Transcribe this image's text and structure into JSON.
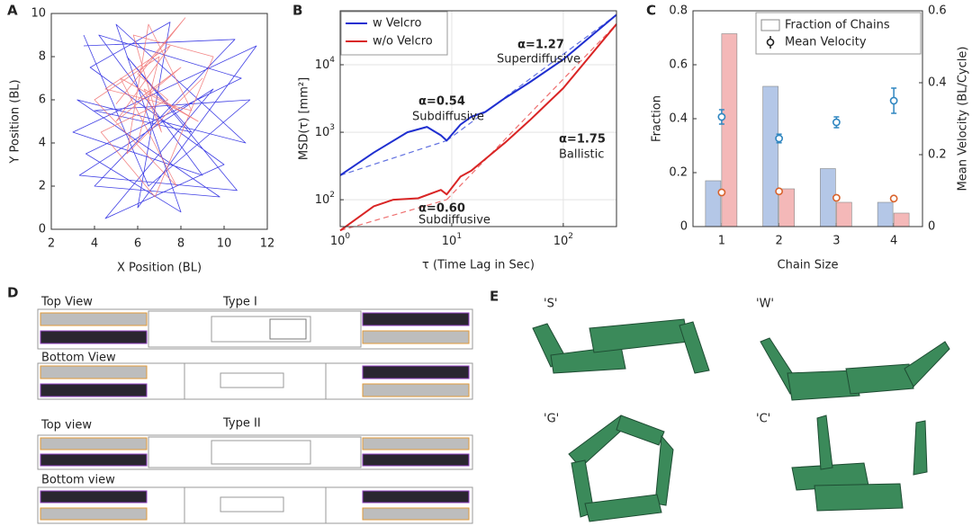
{
  "chart_data": [
    {
      "type": "line",
      "panel": "A",
      "xlabel": "X Position (BL)",
      "ylabel": "Y Position (BL)",
      "xlim": [
        2,
        12
      ],
      "ylim": [
        0,
        10
      ],
      "xticks": [
        2,
        4,
        6,
        8,
        10,
        12
      ],
      "yticks": [
        0,
        2,
        4,
        6,
        8,
        10
      ],
      "series": [
        {
          "color": "#1f1fe0",
          "x": [
            3.5,
            10.5,
            4,
            9.8,
            3.2,
            11,
            5,
            8,
            3.6,
            10.8,
            4.2,
            9,
            3,
            11.5,
            6,
            7.5,
            3.8,
            10,
            4.5,
            9.5,
            3.3,
            10.6,
            5.5,
            8.5,
            4,
            11.2,
            6.5,
            3.5
          ],
          "values": [
            8.5,
            8.8,
            2,
            1.5,
            6,
            4,
            9.5,
            0.8,
            3.5,
            7,
            9,
            2.5,
            4.5,
            8.5,
            1,
            9.6,
            7.5,
            3,
            0.5,
            6.5,
            2.5,
            1.8,
            8,
            4.5,
            5.5,
            6,
            2,
            9
          ]
        },
        {
          "color": "#f07070",
          "x": [
            6,
            8,
            5,
            7.5,
            4.5,
            8.5,
            6.5,
            5.5,
            9,
            6,
            7,
            4,
            7.8,
            5.2,
            8.8,
            6.3,
            7.1,
            5.8,
            9.5,
            6.8,
            4.3,
            7.4,
            6,
            8.2,
            5
          ],
          "values": [
            6,
            7.5,
            5,
            8.5,
            6.5,
            5.5,
            9.5,
            3.5,
            7,
            4,
            8,
            6,
            2,
            7,
            5,
            6.5,
            4.5,
            9,
            8,
            1.5,
            4.5,
            6,
            7.2,
            9.8,
            5.8
          ]
        }
      ]
    },
    {
      "type": "line",
      "panel": "B",
      "xlabel": "τ (Time Lag in Sec)",
      "ylabel": "MSD(τ) [mm²]",
      "xlog": true,
      "ylog": true,
      "grid": true,
      "xlim": [
        1,
        300
      ],
      "ylim": [
        40,
        63000
      ],
      "xticks": [
        {
          "value": 1,
          "label": "10",
          "exponent": "0"
        },
        {
          "value": 10,
          "label": "10",
          "exponent": "1"
        },
        {
          "value": 100,
          "label": "10",
          "exponent": "2"
        }
      ],
      "yticks": [
        {
          "value": 100,
          "label": "10",
          "exponent": "2"
        },
        {
          "value": 1000,
          "label": "10",
          "exponent": "3"
        },
        {
          "value": 10000,
          "label": "10",
          "exponent": "4"
        }
      ],
      "series": [
        {
          "name": "w Velcro",
          "color": "#1f2fd0",
          "x": [
            1,
            2,
            4,
            6,
            8,
            9,
            12,
            15,
            20,
            30,
            50,
            100,
            300
          ],
          "values": [
            230,
            500,
            1000,
            1200,
            900,
            750,
            1300,
            1700,
            2000,
            3200,
            5500,
            12000,
            55000
          ]
        },
        {
          "name": "w/o Velcro",
          "color": "#d92525",
          "x": [
            1,
            2,
            3,
            5,
            8,
            9,
            12,
            15,
            20,
            30,
            50,
            100,
            300
          ],
          "values": [
            35,
            80,
            100,
            105,
            140,
            120,
            220,
            270,
            400,
            700,
            1500,
            4500,
            40000
          ]
        }
      ],
      "fits": [
        {
          "color": "#6070e0",
          "x": [
            1,
            9
          ],
          "values": [
            230,
            750
          ]
        },
        {
          "color": "#6070e0",
          "x": [
            9,
            300
          ],
          "values": [
            750,
            55000
          ]
        },
        {
          "color": "#ee7070",
          "x": [
            1,
            9
          ],
          "values": [
            35,
            100
          ]
        },
        {
          "color": "#ee7070",
          "x": [
            9,
            300
          ],
          "values": [
            100,
            40000
          ]
        }
      ],
      "annotations": [
        {
          "text": "α=0.54",
          "color": "#1f2fd0"
        },
        {
          "text": "Subdiffusive",
          "color": "#1f2fd0"
        },
        {
          "text": "α=1.27",
          "color": "#1f2fd0"
        },
        {
          "text": "Superdiffusive",
          "color": "#1f2fd0"
        },
        {
          "text": "α=1.75",
          "color": "#e05555"
        },
        {
          "text": "Ballistic",
          "color": "#e05555"
        },
        {
          "text": "α=0.60",
          "color": "#e05555"
        },
        {
          "text": "Subdiffusive",
          "color": "#e05555"
        }
      ]
    },
    {
      "type": "bar",
      "panel": "C",
      "xlabel": "Chain Size",
      "ylabel": "Fraction",
      "y2label": "Mean Velocity (BL/Cycle)",
      "categories": [
        "1",
        "2",
        "3",
        "4"
      ],
      "ylim": [
        0,
        0.8
      ],
      "yticks": [
        0,
        0.2,
        0.4,
        0.6,
        0.8
      ],
      "y2lim": [
        0,
        0.6
      ],
      "y2ticks": [
        0,
        0.2,
        0.4,
        0.6
      ],
      "legend": [
        "Fraction of Chains",
        "Mean Velocity"
      ],
      "series": [
        {
          "color": "#b4c7e7",
          "values": [
            0.17,
            0.52,
            0.215,
            0.09
          ]
        },
        {
          "color": "#f4b8b8",
          "values": [
            0.715,
            0.14,
            0.09,
            0.05
          ]
        }
      ],
      "velocity": [
        {
          "color": "#2f86c0",
          "axis": "y2",
          "values": [
            0.305,
            0.245,
            0.29,
            0.35
          ],
          "errors": [
            0.02,
            0.012,
            0.015,
            0.035
          ]
        },
        {
          "color": "#d9622b",
          "axis": "y2",
          "values": [
            0.095,
            0.098,
            0.08,
            0.078
          ],
          "errors": [
            0.006,
            0.006,
            0.005,
            0.005
          ]
        }
      ]
    }
  ],
  "panel_d": {
    "label": "D",
    "texts": [
      "Top View",
      "Type I",
      "Bottom View",
      "Top view",
      "Type II",
      "Bottom view"
    ]
  },
  "panel_e": {
    "label": "E",
    "shapes": [
      "'S'",
      "'W'",
      "'G'",
      "'C'"
    ]
  }
}
